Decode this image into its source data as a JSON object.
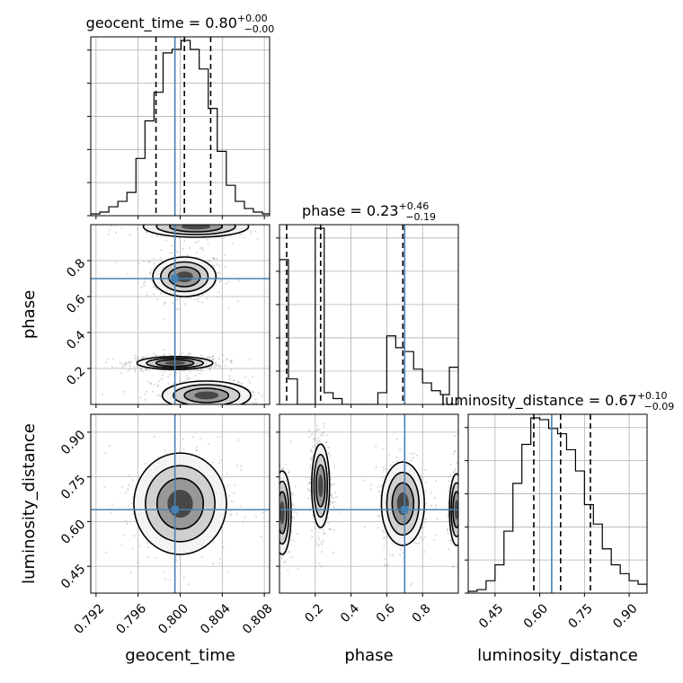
{
  "chart_data": {
    "type": "corner",
    "parameters": [
      {
        "name": "geocent_time",
        "title": {
          "prefix": "geocent_time = ",
          "median": "0.80",
          "upper": "+0.00",
          "lower": "−0.00"
        },
        "range": [
          0.7915,
          0.8085
        ],
        "ticks": [
          0.792,
          0.796,
          0.8,
          0.804,
          0.808
        ],
        "tick_labels": [
          "0.792",
          "0.796",
          "0.800",
          "0.804",
          "0.808"
        ],
        "truth": 0.7995,
        "quantiles": [
          0.7977,
          0.8004,
          0.8029
        ],
        "hist_edges_start": 0.7915,
        "hist_bin_width": 0.000859,
        "hist_values": [
          0.01,
          0.02,
          0.05,
          0.08,
          0.13,
          0.32,
          0.53,
          0.69,
          0.91,
          0.93,
          0.98,
          0.93,
          0.82,
          0.6,
          0.36,
          0.17,
          0.08,
          0.04,
          0.02,
          0.01
        ]
      },
      {
        "name": "phase",
        "title": {
          "prefix": "phase = ",
          "median": "0.23",
          "upper": "+0.46",
          "lower": "−0.19"
        },
        "range": [
          0.0,
          1.0
        ],
        "ticks": [
          0.2,
          0.4,
          0.6,
          0.8
        ],
        "tick_labels": [
          "0.2",
          "0.4",
          "0.6",
          "0.8"
        ],
        "truth": 0.7,
        "quantiles": [
          0.04,
          0.23,
          0.69
        ],
        "hist_edges_start": 0.0,
        "hist_bin_width": 0.05,
        "hist_values": [
          0.74,
          0.13,
          0.0,
          0.0,
          0.9,
          0.06,
          0.03,
          0.0,
          0.0,
          0.0,
          0.0,
          0.06,
          0.35,
          0.29,
          0.27,
          0.18,
          0.11,
          0.07,
          0.05,
          0.19
        ]
      },
      {
        "name": "luminosity_distance",
        "title": {
          "prefix": "luminosity_distance = ",
          "median": "0.67",
          "upper": "+0.10",
          "lower": "−0.09"
        },
        "range": [
          0.36,
          0.96
        ],
        "ticks": [
          0.45,
          0.6,
          0.75,
          0.9
        ],
        "tick_labels": [
          "0.45",
          "0.60",
          "0.75",
          "0.90"
        ],
        "truth": 0.64,
        "quantiles": [
          0.58,
          0.67,
          0.77
        ],
        "hist_edges_start": 0.36,
        "hist_bin_width": 0.03,
        "hist_values": [
          0.01,
          0.02,
          0.07,
          0.16,
          0.35,
          0.62,
          0.84,
          0.99,
          0.98,
          0.93,
          0.9,
          0.81,
          0.69,
          0.5,
          0.39,
          0.25,
          0.16,
          0.11,
          0.07,
          0.05
        ]
      }
    ],
    "blobs": {
      "1_0": [
        {
          "cx": 0.8004,
          "cy": 0.71,
          "sx": 0.0015,
          "sy": 0.055,
          "w": 1.0
        },
        {
          "cx": 0.7995,
          "cy": 0.23,
          "sx": 0.0018,
          "sy": 0.018,
          "w": 1.6
        },
        {
          "cx": 0.8025,
          "cy": 0.05,
          "sx": 0.0021,
          "sy": 0.04,
          "w": 1.1
        },
        {
          "cx": 0.8015,
          "cy": 0.99,
          "sx": 0.0025,
          "sy": 0.03,
          "w": 0.8
        }
      ],
      "2_0": [
        {
          "cx": 0.8,
          "cy": 0.66,
          "sx": 0.0022,
          "sy": 0.085,
          "w": 1.0
        }
      ],
      "2_1": [
        {
          "cx": 0.015,
          "cy": 0.63,
          "sx": 0.025,
          "sy": 0.07,
          "w": 0.9
        },
        {
          "cx": 0.23,
          "cy": 0.72,
          "sx": 0.025,
          "sy": 0.07,
          "w": 1.4
        },
        {
          "cx": 0.69,
          "cy": 0.66,
          "sx": 0.06,
          "sy": 0.07,
          "w": 0.9
        },
        {
          "cx": 0.99,
          "cy": 0.64,
          "sx": 0.02,
          "sy": 0.06,
          "w": 0.5
        }
      ]
    },
    "grid": true,
    "truth_color": "#4682b4",
    "line_color": "#000000"
  }
}
